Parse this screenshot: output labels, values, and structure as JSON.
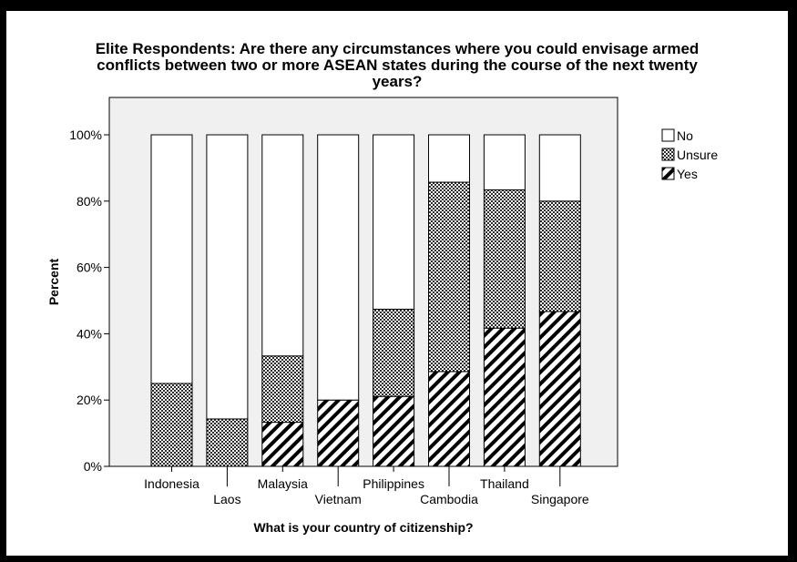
{
  "chart_data": {
    "type": "bar",
    "stacked": true,
    "title_lines": [
      "Elite Respondents: Are there any circumstances where you could envisage armed",
      "conflicts between two or more ASEAN states during the course of the next twenty",
      "years?"
    ],
    "xlabel": "What is your country of citizenship?",
    "ylabel": "Percent",
    "ylim": [
      0,
      100
    ],
    "yticks": [
      "0%",
      "20%",
      "40%",
      "60%",
      "80%",
      "100%"
    ],
    "categories": [
      "Indonesia",
      "Laos",
      "Malaysia",
      "Vietnam",
      "Philippines",
      "Cambodia",
      "Thailand",
      "Singapore"
    ],
    "series": [
      {
        "name": "Yes",
        "pattern": "diagonal-hatch",
        "values": [
          0,
          0,
          13.3,
          20,
          21.1,
          28.6,
          41.7,
          46.7
        ]
      },
      {
        "name": "Unsure",
        "pattern": "dotted-crosshatch",
        "values": [
          25,
          14.3,
          20,
          0,
          26.3,
          57.1,
          41.7,
          33.3
        ]
      },
      {
        "name": "No",
        "pattern": "white",
        "values": [
          75,
          85.7,
          66.7,
          80,
          52.6,
          14.3,
          16.6,
          20
        ]
      }
    ],
    "legend": {
      "position": "right",
      "order": [
        "No",
        "Unsure",
        "Yes"
      ]
    },
    "grid": false,
    "plot_background": "#f0f0f0"
  }
}
